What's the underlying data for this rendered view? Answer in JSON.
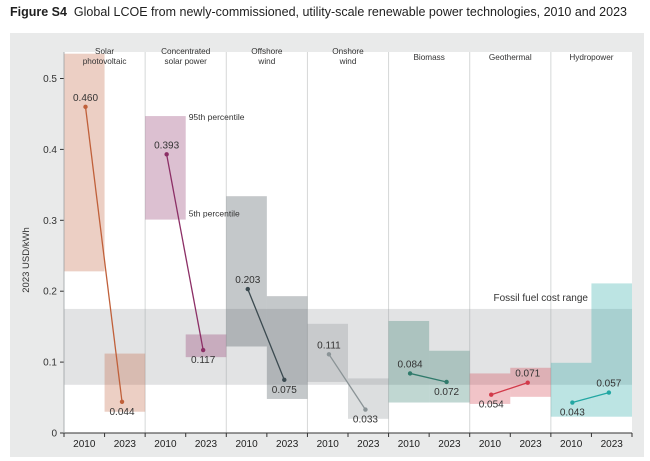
{
  "figure": {
    "label": "Figure S4",
    "title": "Global LCOE from newly-commissioned, utility-scale renewable power technologies, 2010 and 2023"
  },
  "chart_data": {
    "type": "range-bar",
    "ylabel": "2023 USD/kWh",
    "ylim": [
      0,
      0.5
    ],
    "yticks": [
      "0",
      "0.1",
      "0.2",
      "0.3",
      "0.4",
      "0.5"
    ],
    "years": [
      "2010",
      "2023"
    ],
    "fossil_range": {
      "label": "Fossil fuel cost range",
      "low": 0.068,
      "high": 0.175
    },
    "percentile_labels": {
      "p95": "95th percentile",
      "p5": "5th percentile"
    },
    "technologies": [
      {
        "name": [
          "Solar",
          "photovoltaic"
        ],
        "color": "#c0603a",
        "v2010": 0.46,
        "v2023": 0.044,
        "r2010": [
          0.228,
          0.535
        ],
        "r2023": [
          0.03,
          0.112
        ],
        "l2010": "0.460",
        "l2023": "0.044"
      },
      {
        "name": [
          "Concentrated",
          "solar power"
        ],
        "color": "#8c2f66",
        "v2010": 0.393,
        "v2023": 0.117,
        "r2010": [
          0.301,
          0.447
        ],
        "r2023": [
          0.107,
          0.139
        ],
        "l2010": "0.393",
        "l2023": "0.117"
      },
      {
        "name": [
          "Offshore",
          "wind"
        ],
        "color": "#3b4a50",
        "v2010": 0.203,
        "v2023": 0.075,
        "r2010": [
          0.122,
          0.334
        ],
        "r2023": [
          0.048,
          0.193
        ],
        "l2010": "0.203",
        "l2023": "0.075"
      },
      {
        "name": [
          "Onshore",
          "wind"
        ],
        "color": "#8a9396",
        "v2010": 0.111,
        "v2023": 0.033,
        "r2010": [
          0.072,
          0.154
        ],
        "r2023": [
          0.02,
          0.077
        ],
        "l2010": "0.111",
        "l2023": "0.033"
      },
      {
        "name": [
          "Biomass"
        ],
        "color": "#2f7a6b",
        "v2010": 0.084,
        "v2023": 0.072,
        "r2010": [
          0.043,
          0.158
        ],
        "r2023": [
          0.043,
          0.116
        ],
        "l2010": "0.084",
        "l2023": "0.072"
      },
      {
        "name": [
          "Geothermal"
        ],
        "color": "#d23a4a",
        "v2010": 0.054,
        "v2023": 0.071,
        "r2010": [
          0.041,
          0.084
        ],
        "r2023": [
          0.051,
          0.092
        ],
        "l2010": "0.054",
        "l2023": "0.071"
      },
      {
        "name": [
          "Hydropower"
        ],
        "color": "#22a7a3",
        "v2010": 0.043,
        "v2023": 0.057,
        "r2010": [
          0.023,
          0.099
        ],
        "r2023": [
          0.023,
          0.211
        ],
        "l2010": "0.043",
        "l2023": "0.057"
      }
    ]
  }
}
